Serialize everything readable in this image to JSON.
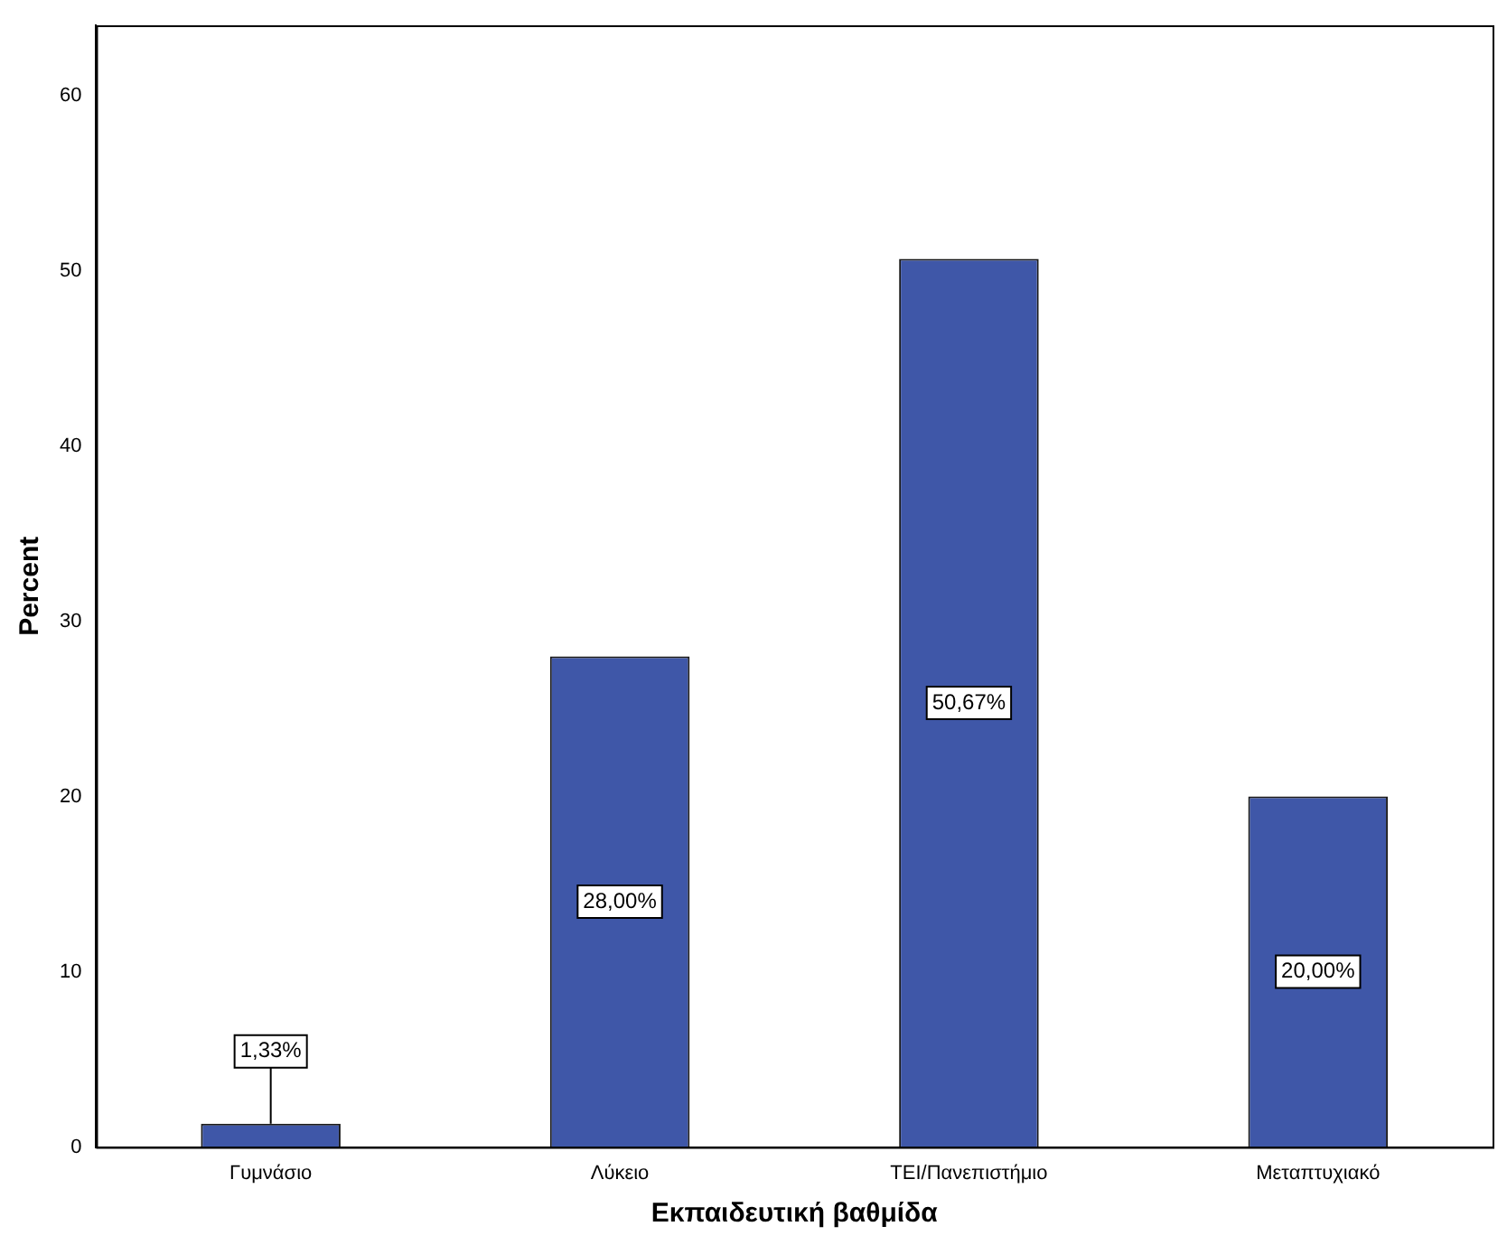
{
  "chart_data": {
    "type": "bar",
    "xlabel": "Εκπαιδευτική βαθμίδα",
    "ylabel": "Percent",
    "categories": [
      "Γυμνάσιο",
      "Λύκειο",
      "ΤΕΙ/Πανεπιστήμιο",
      "Μεταπτυχιακό"
    ],
    "values": [
      1.33,
      28,
      50.67,
      20
    ],
    "value_labels": [
      "1,33%",
      "28,00%",
      "50,67%",
      "20,00%"
    ],
    "color": "#3f57a8",
    "ylim": [
      0,
      64
    ],
    "yticks": [
      0,
      10,
      20,
      30,
      40,
      50,
      60
    ],
    "grid": false,
    "legend": false
  }
}
